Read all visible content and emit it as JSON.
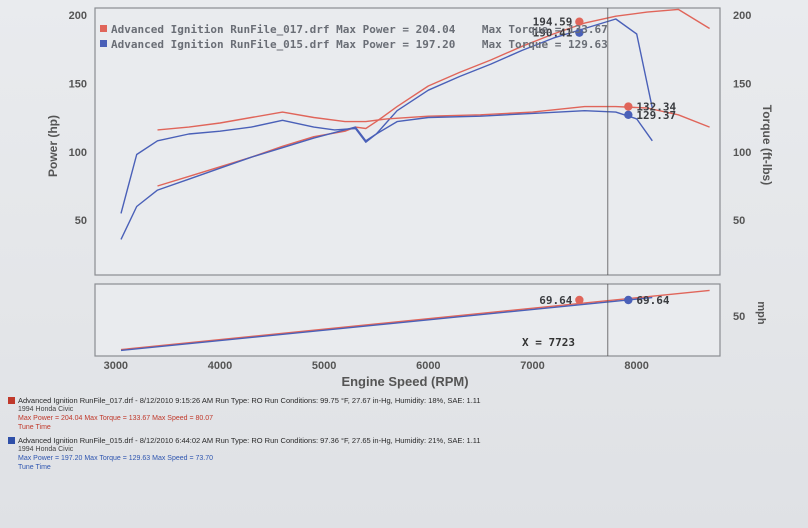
{
  "colors": {
    "run017": "#e0655a",
    "run015": "#4a60b8",
    "gridbg": "#e8eaed",
    "frame": "#8a8d92"
  },
  "chart_data": [
    {
      "type": "line",
      "title": "",
      "xlabel": "Engine Speed (RPM)",
      "ylabel_left": "Power (hp)",
      "ylabel_right": "Torque (ft-lbs)",
      "xlim": [
        2800,
        8800
      ],
      "ylim": [
        10,
        205
      ],
      "x_ticks": [
        "3000",
        "4000",
        "5000",
        "6000",
        "7000",
        "8000"
      ],
      "y_ticks_left": [
        "50",
        "100",
        "150",
        "200"
      ],
      "y_ticks_right": [
        "50",
        "100",
        "150",
        "200"
      ],
      "cursor_x": 7723,
      "legend": [
        "Advanced Ignition RunFile_017.drf Max Power = 204.04    Max Torque = 133.67",
        "Advanced Ignition RunFile_015.drf Max Power = 197.20    Max Torque = 129.63"
      ],
      "markers": [
        {
          "label": "194.59",
          "x": 7450,
          "y": 195,
          "series": "RunFile_017"
        },
        {
          "label": "190.41",
          "x": 7450,
          "y": 187,
          "series": "RunFile_015"
        },
        {
          "label": "132.34",
          "x": 7920,
          "y": 133,
          "series": "RunFile_017"
        },
        {
          "label": "129.37",
          "x": 7920,
          "y": 127,
          "series": "RunFile_015"
        }
      ],
      "series": [
        {
          "name": "RunFile_017 Power",
          "color": "#e0655a",
          "x": [
            3400,
            3700,
            4000,
            4300,
            4600,
            4900,
            5200,
            5300,
            5400,
            5500,
            5700,
            6000,
            6300,
            6600,
            6900,
            7200,
            7500,
            7800,
            8100,
            8400,
            8700
          ],
          "y": [
            75,
            82,
            89,
            96,
            104,
            111,
            115,
            118,
            117,
            122,
            133,
            148,
            158,
            167,
            177,
            186,
            194,
            199,
            202,
            204,
            190
          ]
        },
        {
          "name": "RunFile_015 Power",
          "color": "#4a60b8",
          "x": [
            3050,
            3200,
            3400,
            3700,
            4000,
            4300,
            4600,
            4900,
            5100,
            5300,
            5400,
            5500,
            5700,
            6000,
            6300,
            6600,
            6900,
            7200,
            7500,
            7800,
            8000,
            8150
          ],
          "y": [
            36,
            60,
            72,
            80,
            88,
            96,
            103,
            110,
            114,
            118,
            108,
            113,
            130,
            145,
            155,
            164,
            174,
            183,
            190,
            197,
            186,
            132
          ]
        },
        {
          "name": "RunFile_017 Torque",
          "color": "#e0655a",
          "x": [
            3400,
            3700,
            4000,
            4300,
            4600,
            4900,
            5200,
            5400,
            5600,
            6000,
            6500,
            7000,
            7500,
            7800,
            8100,
            8400,
            8700
          ],
          "y": [
            116,
            118,
            121,
            125,
            129,
            125,
            122,
            122,
            124,
            126,
            127,
            129,
            133,
            133,
            132,
            127,
            118
          ]
        },
        {
          "name": "RunFile_015 Torque",
          "color": "#4a60b8",
          "x": [
            3050,
            3200,
            3400,
            3700,
            4000,
            4300,
            4600,
            4900,
            5100,
            5300,
            5400,
            5500,
            5700,
            6000,
            6500,
            7000,
            7500,
            7800,
            8000,
            8150
          ],
          "y": [
            55,
            98,
            108,
            113,
            115,
            118,
            123,
            118,
            116,
            117,
            107,
            113,
            122,
            125,
            126,
            128,
            130,
            129,
            124,
            108
          ]
        }
      ]
    },
    {
      "type": "line",
      "title": "",
      "ylabel_right": "mph",
      "xlim": [
        2800,
        8800
      ],
      "ylim": [
        0,
        90
      ],
      "y_ticks_right": [
        "50"
      ],
      "cursor_label": "X = 7723",
      "markers": [
        {
          "label": "69.64",
          "x": 7450,
          "y": 70,
          "series": "RunFile_017"
        },
        {
          "label": "69.64",
          "x": 7920,
          "y": 70,
          "series": "RunFile_015"
        }
      ],
      "series": [
        {
          "name": "RunFile_017 Speed",
          "color": "#e0655a",
          "x": [
            3050,
            8700
          ],
          "y": [
            8,
            82
          ]
        },
        {
          "name": "RunFile_015 Speed",
          "color": "#4a60b8",
          "x": [
            3050,
            8150
          ],
          "y": [
            7,
            73
          ]
        }
      ]
    }
  ],
  "runs": [
    {
      "header": "Advanced Ignition RunFile_017.drf - 8/12/2010 9:15:26 AM  Run Type: RO  Run Conditions: 99.75 °F, 27.67 in-Hg,  Humidity: 18%, SAE: 1.11",
      "vehicle": "1994 Honda Civic",
      "stats": "Max Power = 204.04  Max Torque = 133.67  Max Speed = 80.07",
      "tune": "Tune Time"
    },
    {
      "header": "Advanced Ignition RunFile_015.drf - 8/12/2010 6:44:02 AM  Run Type: RO  Run Conditions: 97.36 °F, 27.65 in-Hg,  Humidity: 21%, SAE: 1.11",
      "vehicle": "1994 Honda Civic",
      "stats": "Max Power = 197.20  Max Torque = 129.63  Max Speed = 73.70",
      "tune": "Tune Time"
    }
  ]
}
